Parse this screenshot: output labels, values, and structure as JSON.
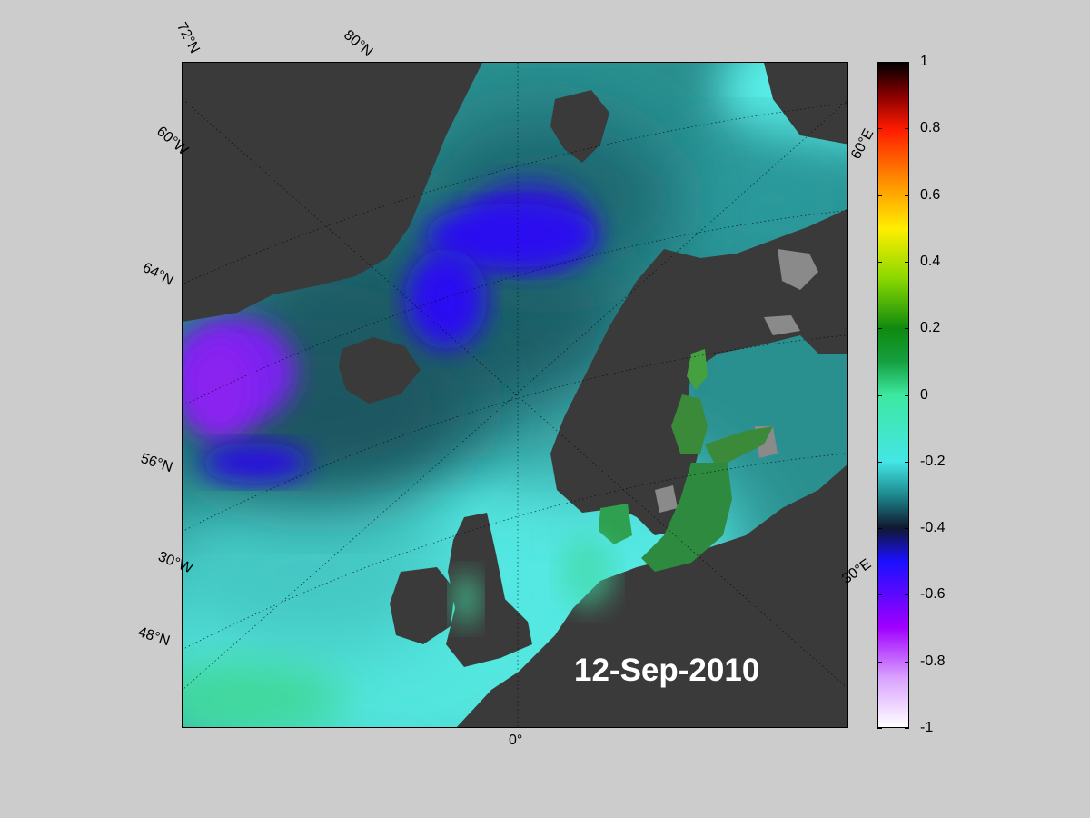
{
  "map": {
    "date": "12-Sep-2010",
    "grid_labels": {
      "lat72": "72°N",
      "lat80": "80°N",
      "lon60w": "60°W",
      "lat64": "64°N",
      "lat56": "56°N",
      "lon30w": "30°W",
      "lat48": "48°N",
      "lon0": "0°",
      "lon60e": "60°E",
      "lon30e": "30°E"
    },
    "colors": {
      "land": "#3a3a3a",
      "ice": "#8a8a8a",
      "ocean_base": "#2a8f8f",
      "cyan": "#4fe6e0",
      "teal_dark": "#16505a",
      "blue": "#2a10f0",
      "violet": "#8a20f0",
      "baltic_green": "#2e8a3e"
    }
  },
  "colorbar": {
    "min": -1,
    "max": 1,
    "tick_labels": [
      "1",
      "0.8",
      "0.6",
      "0.4",
      "0.2",
      "0",
      "-0.2",
      "-0.4",
      "-0.6",
      "-0.8",
      "-1"
    ],
    "tick_values": [
      1,
      0.8,
      0.6,
      0.4,
      0.2,
      0,
      -0.2,
      -0.4,
      -0.6,
      -0.8,
      -1
    ],
    "stops": [
      {
        "value": 1,
        "color": "#000000"
      },
      {
        "value": 0.9,
        "color": "#8a0000"
      },
      {
        "value": 0.8,
        "color": "#ff1a00"
      },
      {
        "value": 0.65,
        "color": "#ff8a00"
      },
      {
        "value": 0.5,
        "color": "#ffee00"
      },
      {
        "value": 0.35,
        "color": "#8ad800"
      },
      {
        "value": 0.2,
        "color": "#0f8a0f"
      },
      {
        "value": 0.1,
        "color": "#15a040"
      },
      {
        "value": 0,
        "color": "#3de8a0"
      },
      {
        "value": -0.2,
        "color": "#44e6e6"
      },
      {
        "value": -0.3,
        "color": "#1e8a90"
      },
      {
        "value": -0.4,
        "color": "#101830"
      },
      {
        "value": -0.5,
        "color": "#1a10ff"
      },
      {
        "value": -0.7,
        "color": "#a000ff"
      },
      {
        "value": -0.85,
        "color": "#d8a0ff"
      },
      {
        "value": -1,
        "color": "#ffffff"
      }
    ]
  }
}
